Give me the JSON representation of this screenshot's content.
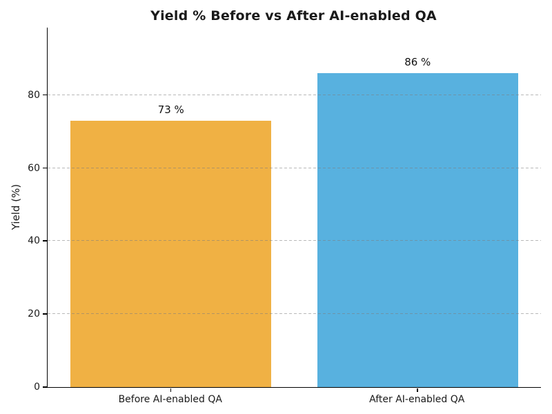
{
  "chart_data": {
    "type": "bar",
    "title": "Yield % Before vs After AI-enabled QA",
    "categories": [
      "Before AI-enabled QA",
      "After AI-enabled QA"
    ],
    "values": [
      73,
      86
    ],
    "value_labels": [
      "73 %",
      "86 %"
    ],
    "bar_colors": [
      "#F0B144",
      "#58B1DF"
    ],
    "xlabel": "",
    "ylabel": "Yield (%)",
    "ylim": [
      0,
      98.5
    ],
    "yticks": [
      0,
      20,
      40,
      60,
      80
    ],
    "grid": "horizontal-dashed",
    "grid_color": "#c4c4c4",
    "legend": "none",
    "spines": [
      "left",
      "bottom"
    ],
    "text_color": "#1a1a1a",
    "background_color": "#ffffff"
  }
}
